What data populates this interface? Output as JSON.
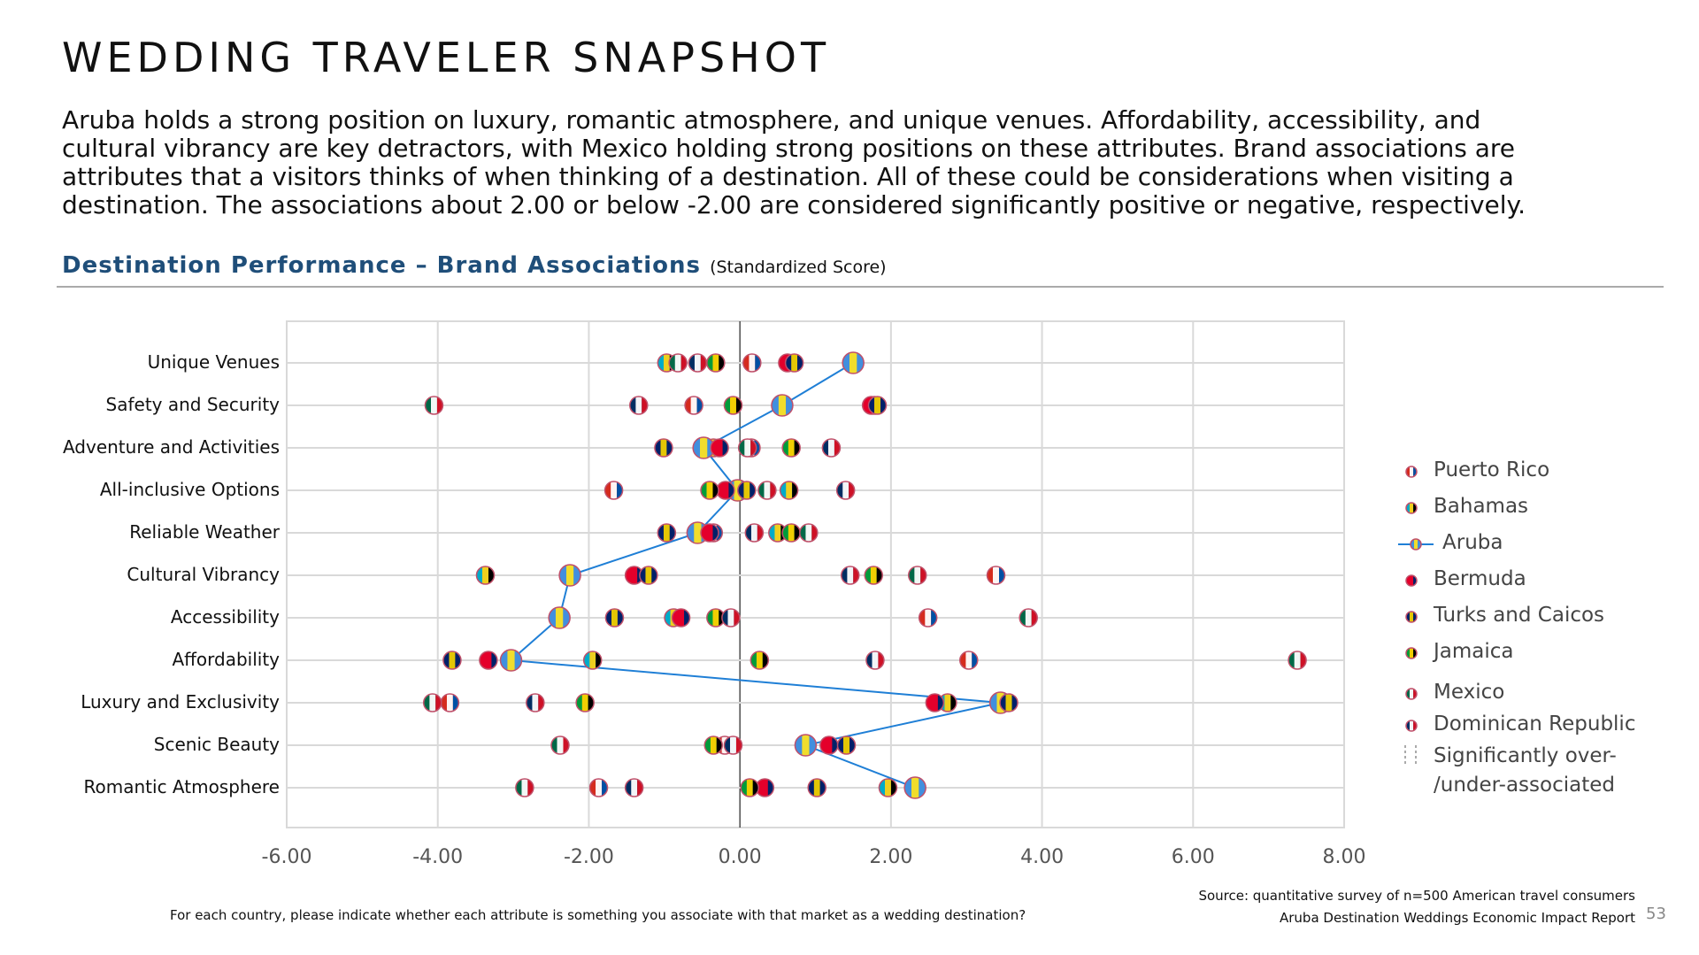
{
  "title": "WEDDING TRAVELER SNAPSHOT",
  "intro": "Aruba holds a strong position on luxury, romantic atmosphere, and unique venues. Affordability, accessibility, and cultural vibrancy are key detractors, with Mexico holding strong positions on these attributes. Brand associations are attributes that a visitors thinks of when thinking of a destination. All of these could be considerations when visiting a destination. The associations about 2.00 or below -2.00 are considered significantly positive or negative, respectively.",
  "section": {
    "title": "Destination Performance – Brand Associations",
    "subtitle": "(Standardized Score)"
  },
  "legend": {
    "items": [
      "Puerto Rico",
      "Bahamas",
      "Aruba",
      "Bermuda",
      "Turks and Caicos",
      "Jamaica",
      "Mexico",
      "Dominican Republic"
    ],
    "significance_line1": "Significantly over-",
    "significance_line2": "/under-associated"
  },
  "footer": {
    "source": "Source: quantitative survey of n=500 American travel consumers",
    "report": "Aruba Destination Weddings Economic Impact Report",
    "question": "For each country, please indicate whether each attribute is something you associate with that market as a wedding destination?",
    "page": "53"
  },
  "colors": {
    "aruba_line": "#1f7fd6",
    "section_title": "#1f4e79"
  },
  "chart_data": {
    "type": "scatter",
    "title": "",
    "xlabel": "",
    "ylabel": "",
    "xlim": [
      -6,
      8
    ],
    "x_ticks": [
      "-6.00",
      "-4.00",
      "-2.00",
      "0.00",
      "2.00",
      "4.00",
      "6.00",
      "8.00"
    ],
    "grid": true,
    "legend_position": "right",
    "categories": [
      "Unique  Venues",
      "Safety and Security",
      "Adventure and Activities",
      "All-inclusive  Options",
      "Reliable Weather",
      "Cultural  Vibrancy",
      "Accessibility",
      "Affordability",
      "Luxury and Exclusivity",
      "Scenic Beauty",
      "Romantic  Atmosphere"
    ],
    "series": [
      {
        "name": "Puerto Rico",
        "colors": [
          "#d52b1e",
          "#ffffff",
          "#0050a4"
        ],
        "values": [
          0.16,
          -0.61,
          0.15,
          -1.67,
          -0.35,
          3.39,
          2.49,
          3.03,
          -3.84,
          -0.2,
          -1.87
        ]
      },
      {
        "name": "Bahamas",
        "colors": [
          "#00abc9",
          "#fcd116",
          "#000000"
        ],
        "values": [
          -0.97,
          1.78,
          -0.35,
          0.65,
          0.5,
          -3.37,
          -0.88,
          -1.95,
          2.75,
          0.85,
          1.96
        ]
      },
      {
        "name": "Aruba",
        "colors": [
          "#418fde",
          "#fbe122",
          "#418fde"
        ],
        "line": true,
        "values": [
          1.5,
          0.56,
          -0.48,
          -0.03,
          -0.56,
          -2.25,
          -2.39,
          -3.03,
          3.45,
          0.87,
          2.32
        ]
      },
      {
        "name": "Bermuda",
        "colors": [
          "#e4002b",
          "#e4002b",
          "#012169"
        ],
        "values": [
          0.63,
          1.74,
          -0.27,
          -0.19,
          -0.4,
          -1.4,
          -0.78,
          -3.33,
          2.58,
          1.18,
          0.33
        ]
      },
      {
        "name": "Turks and Caicos",
        "colors": [
          "#012169",
          "#f0d000",
          "#012169"
        ],
        "values": [
          0.72,
          1.82,
          -1.01,
          0.09,
          -0.97,
          -1.21,
          -1.66,
          -3.81,
          3.56,
          1.41,
          1.02
        ]
      },
      {
        "name": "Jamaica",
        "colors": [
          "#009b3a",
          "#fed100",
          "#000000"
        ],
        "values": [
          -0.32,
          -0.09,
          0.68,
          -0.4,
          0.68,
          1.77,
          -0.32,
          0.26,
          -2.05,
          -0.35,
          0.13
        ]
      },
      {
        "name": "Mexico",
        "colors": [
          "#006847",
          "#ffffff",
          "#ce1126"
        ],
        "values": [
          -0.82,
          -4.05,
          0.1,
          0.36,
          0.91,
          2.35,
          3.82,
          7.38,
          -4.07,
          -2.38,
          -2.85
        ]
      },
      {
        "name": "Dominican Republic",
        "colors": [
          "#002d62",
          "#ffffff",
          "#ce1126"
        ],
        "values": [
          -0.56,
          -1.34,
          1.21,
          1.4,
          0.19,
          1.46,
          -0.12,
          1.79,
          -2.71,
          -0.09,
          -1.4
        ]
      }
    ]
  }
}
